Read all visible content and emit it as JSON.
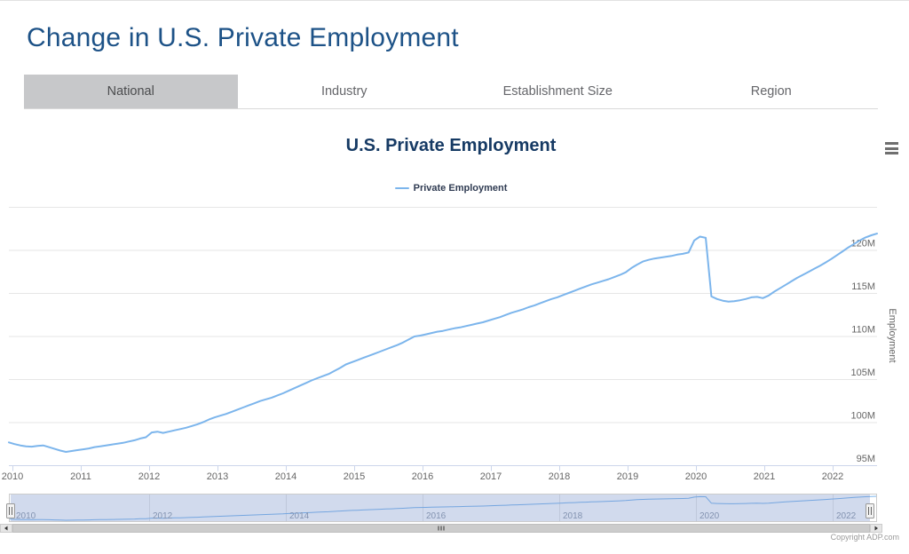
{
  "page": {
    "title": "Change in U.S. Private Employment"
  },
  "tabs": {
    "items": [
      {
        "label": "National",
        "active": true
      },
      {
        "label": "Industry",
        "active": false
      },
      {
        "label": "Establishment Size",
        "active": false
      },
      {
        "label": "Region",
        "active": false
      }
    ]
  },
  "chart": {
    "title": "U.S. Private Employment",
    "legend_label": "Private Employment",
    "y_axis_title": "Employment",
    "copyright": "Copyright ADP.com"
  },
  "colors": {
    "series_blue": "#7cb5ec",
    "page_title_blue": "#1d5287",
    "chart_title_navy": "#163a64",
    "axis_label_gray": "#666666",
    "grid_gray": "#e6e6e6",
    "axis_line_blue_gray": "#ccd6eb",
    "tab_active_bg": "#c7c8ca",
    "navigator_mask": "rgba(102,133,194,0.3)",
    "navigator_label_gray": "#8f99a8",
    "scrollbar_bar": "#cccccc",
    "scrollbar_button": "#e6e6e6"
  },
  "chart_data": {
    "type": "line",
    "title": "U.S. Private Employment",
    "xlabel": "",
    "ylabel": "Employment",
    "legend_entries": [
      "Private Employment"
    ],
    "legend_position": "top",
    "grid": true,
    "ylim": [
      95,
      125
    ],
    "y_gridline_values_millions": [
      95,
      100,
      105,
      110,
      115,
      120,
      125
    ],
    "y_tick_labels": [
      "95M",
      "100M",
      "105M",
      "110M",
      "115M",
      "120M"
    ],
    "x_ticks_years": [
      2010,
      2011,
      2012,
      2013,
      2014,
      2015,
      2016,
      2017,
      2018,
      2019,
      2020,
      2021,
      2022
    ],
    "navigator_tick_years": [
      2010,
      2012,
      2014,
      2016,
      2018,
      2020,
      2022
    ],
    "series": [
      {
        "name": "Private Employment",
        "color": "#7cb5ec",
        "unit": "millions of jobs",
        "start_year": 2010,
        "start_month": 1,
        "frequency": "monthly",
        "values": [
          97.65,
          97.45,
          97.3,
          97.2,
          97.15,
          97.25,
          97.3,
          97.1,
          96.9,
          96.7,
          96.55,
          96.65,
          96.75,
          96.85,
          96.95,
          97.1,
          97.2,
          97.3,
          97.4,
          97.5,
          97.6,
          97.75,
          97.9,
          98.1,
          98.25,
          98.8,
          98.9,
          98.75,
          98.9,
          99.05,
          99.2,
          99.35,
          99.55,
          99.75,
          100.0,
          100.3,
          100.55,
          100.75,
          100.95,
          101.2,
          101.45,
          101.7,
          101.95,
          102.2,
          102.45,
          102.65,
          102.85,
          103.1,
          103.35,
          103.65,
          103.95,
          104.25,
          104.55,
          104.85,
          105.1,
          105.35,
          105.6,
          105.95,
          106.3,
          106.7,
          106.95,
          107.2,
          107.45,
          107.7,
          107.95,
          108.2,
          108.45,
          108.7,
          108.95,
          109.25,
          109.6,
          109.95,
          110.05,
          110.2,
          110.35,
          110.5,
          110.6,
          110.75,
          110.9,
          111.0,
          111.15,
          111.3,
          111.45,
          111.6,
          111.8,
          112.0,
          112.2,
          112.45,
          112.7,
          112.9,
          113.1,
          113.35,
          113.55,
          113.8,
          114.05,
          114.3,
          114.5,
          114.75,
          115.0,
          115.25,
          115.5,
          115.75,
          116.0,
          116.2,
          116.4,
          116.6,
          116.85,
          117.1,
          117.4,
          117.9,
          118.3,
          118.65,
          118.85,
          119.0,
          119.1,
          119.2,
          119.3,
          119.45,
          119.55,
          119.7,
          121.1,
          121.55,
          121.4,
          114.6,
          114.3,
          114.1,
          114.0,
          114.05,
          114.15,
          114.3,
          114.5,
          114.55,
          114.4,
          114.7,
          115.15,
          115.55,
          115.95,
          116.35,
          116.75,
          117.1,
          117.45,
          117.8,
          118.15,
          118.55,
          118.95,
          119.4,
          119.85,
          120.3,
          120.7,
          121.1,
          121.45,
          121.7,
          121.9
        ]
      }
    ]
  }
}
